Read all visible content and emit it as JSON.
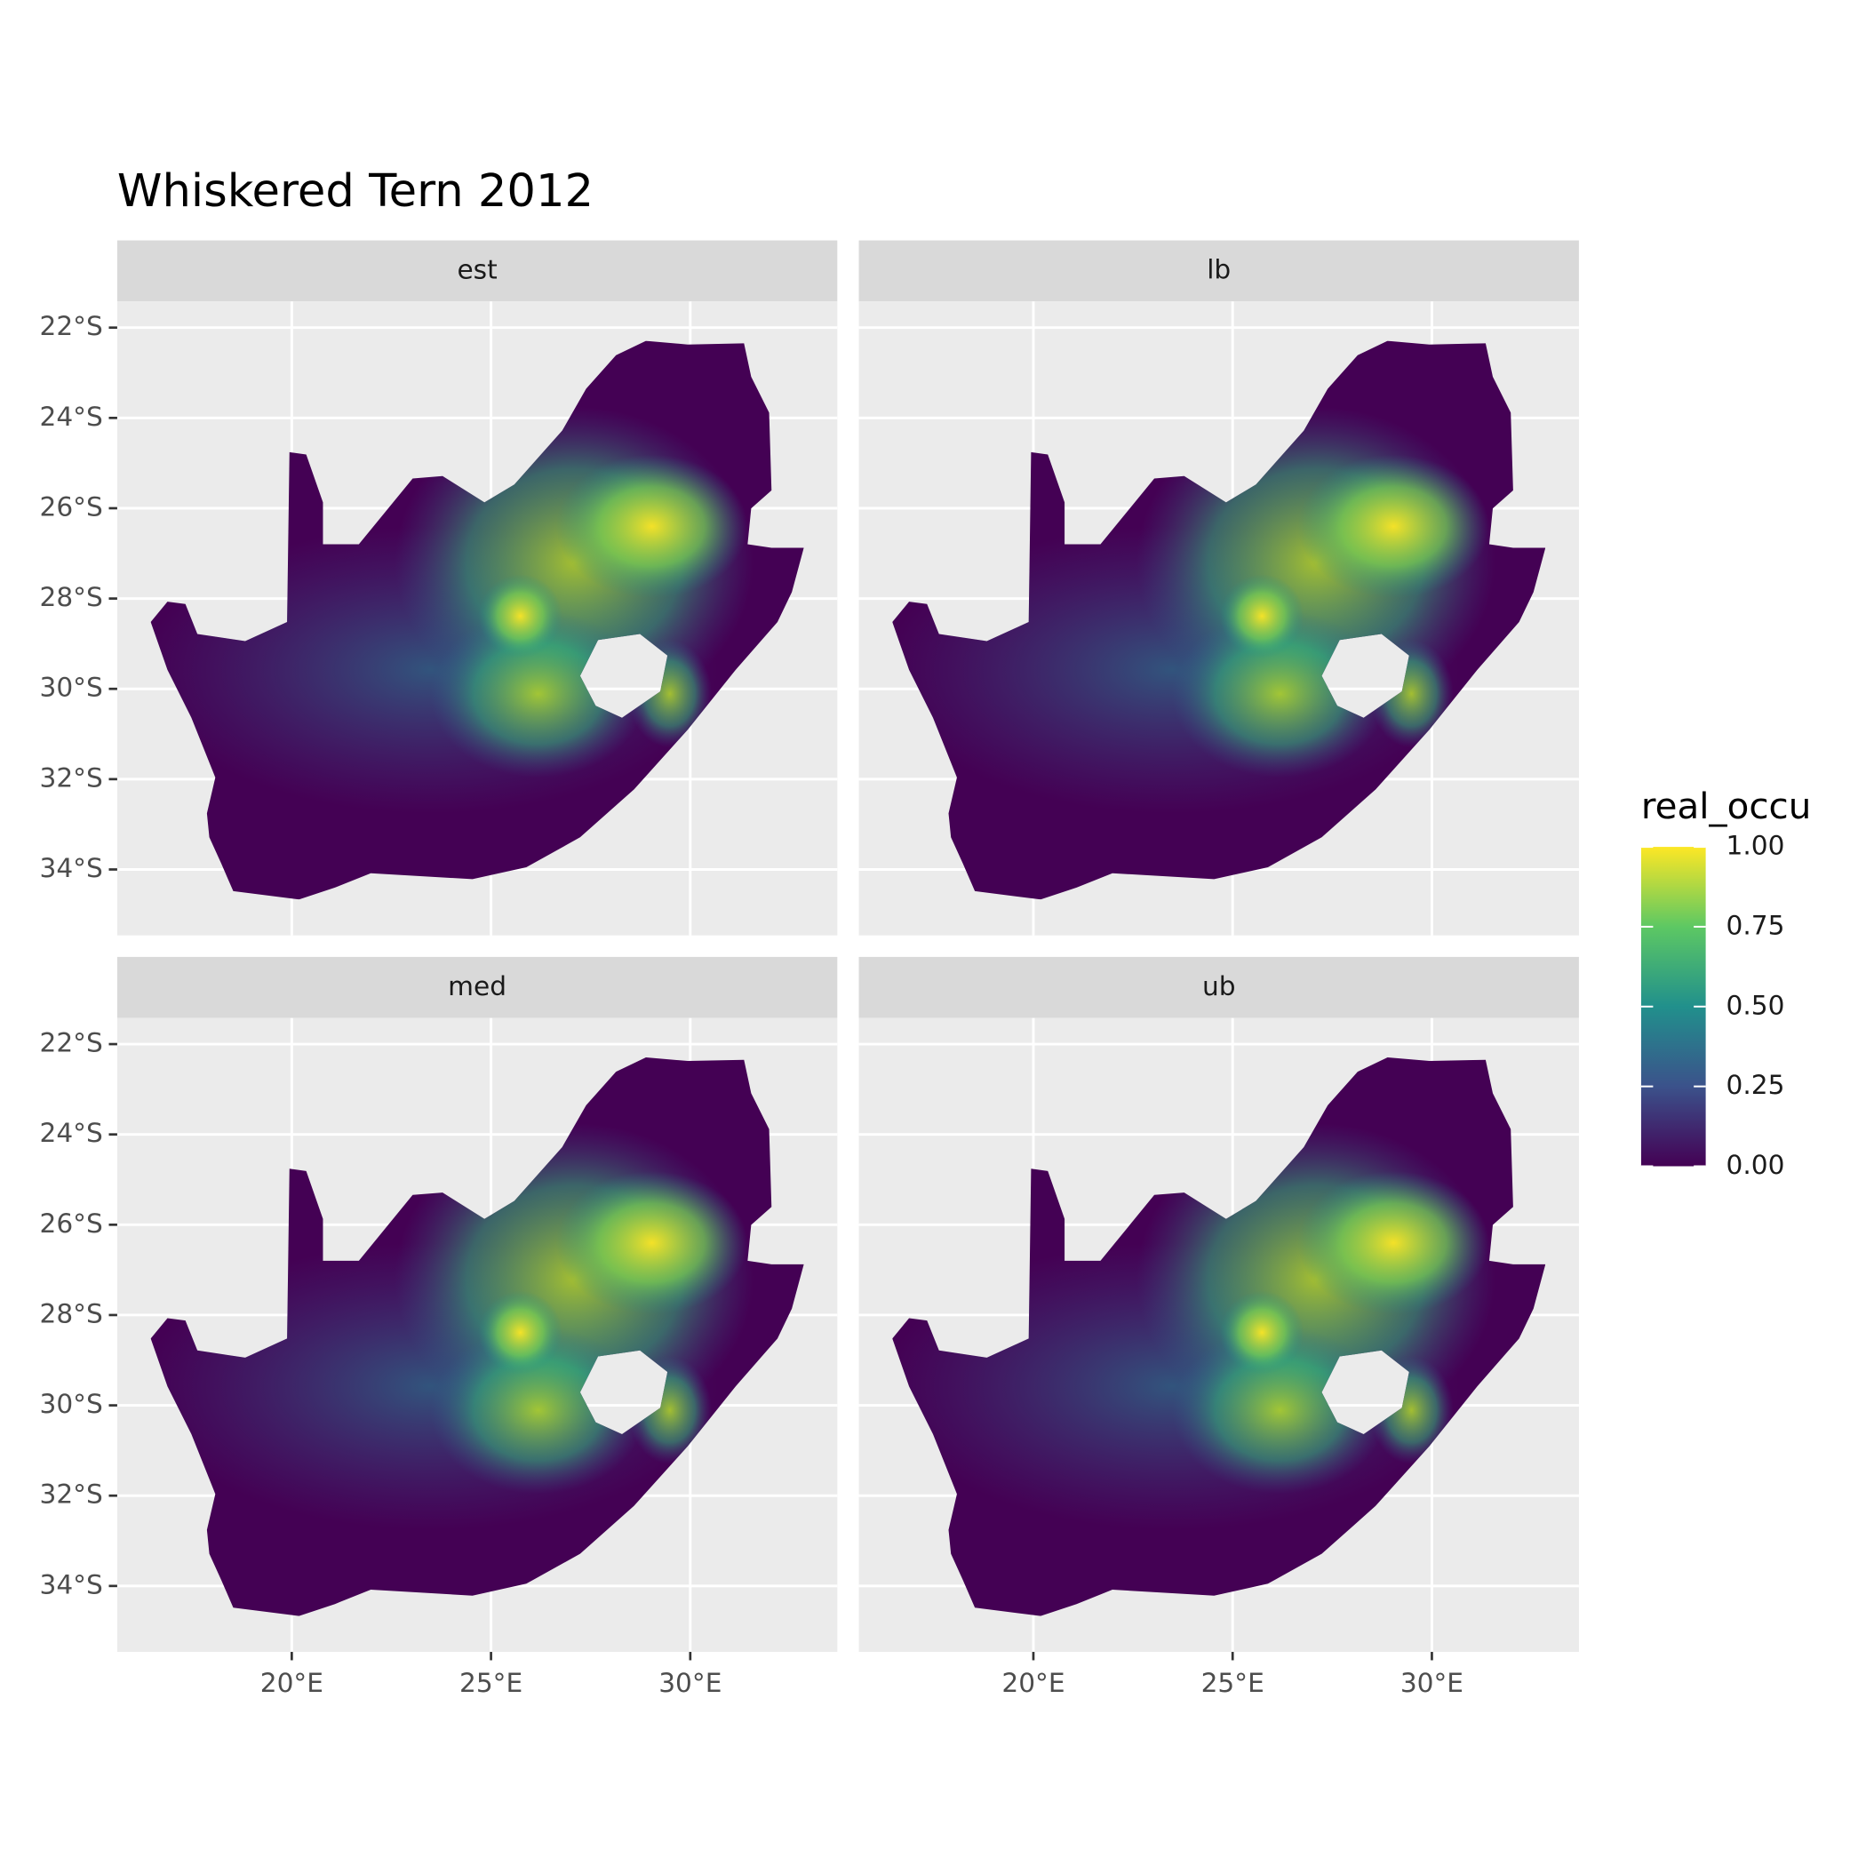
{
  "chart_data": {
    "type": "raster",
    "title": "Whiskered Tern 2012",
    "facets": [
      "est",
      "lb",
      "med",
      "ub"
    ],
    "xlim": [
      15.62,
      33.69
    ],
    "ylim": [
      -35.46,
      -21.42
    ],
    "xticks": [
      {
        "value": 20,
        "label": "20°E"
      },
      {
        "value": 25,
        "label": "25°E"
      },
      {
        "value": 30,
        "label": "30°E"
      }
    ],
    "yticks": [
      {
        "value": -22,
        "label": "22°S"
      },
      {
        "value": -24,
        "label": "24°S"
      },
      {
        "value": -26,
        "label": "26°S"
      },
      {
        "value": -28,
        "label": "28°S"
      },
      {
        "value": -30,
        "label": "30°S"
      },
      {
        "value": -32,
        "label": "32°S"
      },
      {
        "value": -34,
        "label": "34°S"
      }
    ],
    "grid": true,
    "legend": {
      "title": "real_occu",
      "lim": [
        0,
        1
      ],
      "ticks": [
        {
          "value": 0,
          "label": "0.00"
        },
        {
          "value": 0.25,
          "label": "0.25"
        },
        {
          "value": 0.5,
          "label": "0.50"
        },
        {
          "value": 0.75,
          "label": "0.75"
        },
        {
          "value": 1,
          "label": "1.00"
        }
      ],
      "colors": [
        "#440154",
        "#3b528b",
        "#21908c",
        "#5dc863",
        "#fde725"
      ]
    }
  }
}
